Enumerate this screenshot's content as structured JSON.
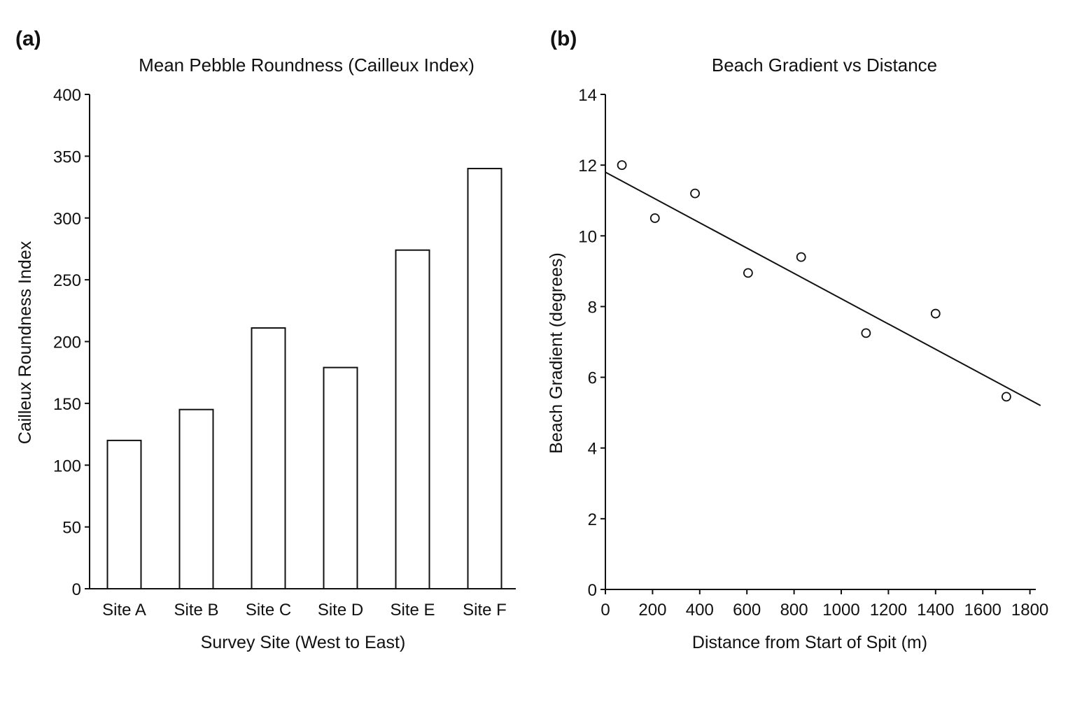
{
  "figure": {
    "panel_a_label": "(a)",
    "panel_b_label": "(b)"
  },
  "chart_data": [
    {
      "type": "bar",
      "title": "Mean Pebble Roundness (Cailleux Index)",
      "xlabel": "Survey Site (West to East)",
      "ylabel": "Cailleux Roundness Index",
      "categories": [
        "Site A",
        "Site B",
        "Site C",
        "Site D",
        "Site E",
        "Site F"
      ],
      "values": [
        120,
        145,
        211,
        179,
        274,
        340
      ],
      "ylim": [
        0,
        400
      ],
      "yticks": [
        0,
        50,
        100,
        150,
        200,
        250,
        300,
        350,
        400
      ],
      "grid": false
    },
    {
      "type": "scatter",
      "title": "Beach Gradient vs Distance",
      "xlabel": "Distance from Start of Spit (m)",
      "ylabel": "Beach Gradient (degrees)",
      "points": [
        {
          "x": 70,
          "y": 12.0
        },
        {
          "x": 210,
          "y": 10.5
        },
        {
          "x": 380,
          "y": 11.2
        },
        {
          "x": 605,
          "y": 8.95
        },
        {
          "x": 830,
          "y": 9.4
        },
        {
          "x": 1105,
          "y": 7.25
        },
        {
          "x": 1400,
          "y": 7.8
        },
        {
          "x": 1700,
          "y": 5.45
        }
      ],
      "trendline": {
        "x": [
          0,
          1845
        ],
        "y": [
          11.8,
          5.2
        ]
      },
      "xlim": [
        0,
        1845
      ],
      "ylim": [
        0,
        14
      ],
      "xticks": [
        0,
        200,
        400,
        600,
        800,
        1000,
        1200,
        1400,
        1600,
        1800
      ],
      "yticks": [
        0,
        2,
        4,
        6,
        8,
        10,
        12,
        14
      ],
      "grid": false
    }
  ]
}
